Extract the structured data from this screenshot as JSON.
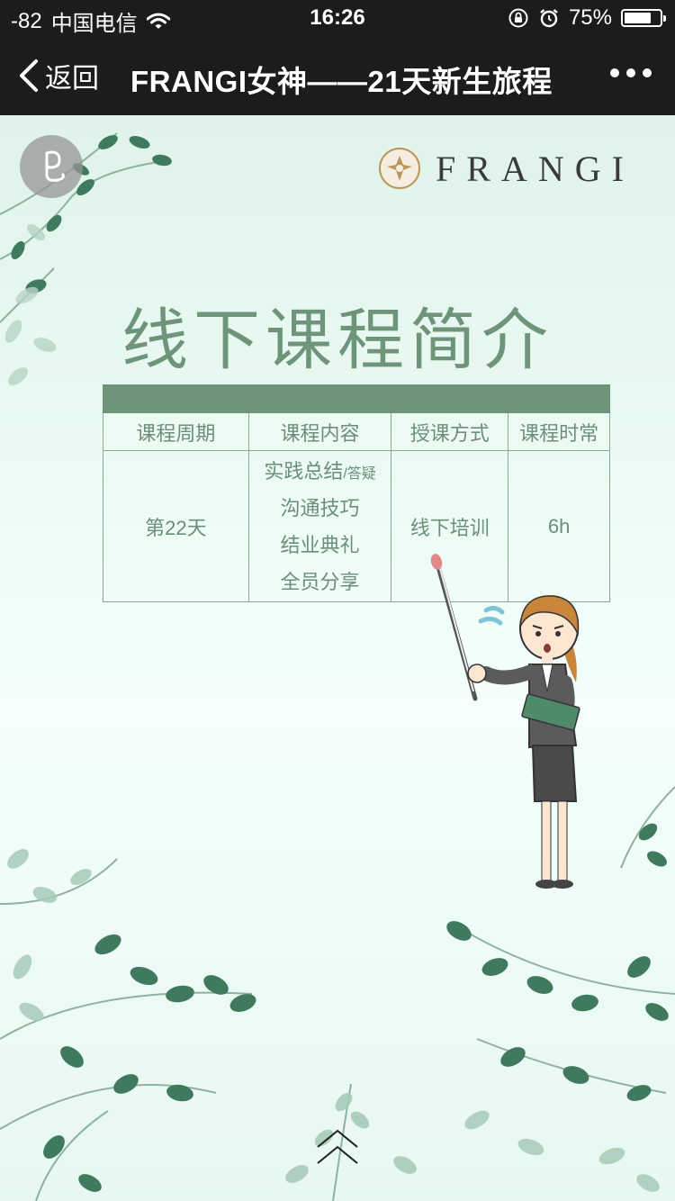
{
  "status_bar": {
    "signal": "-82",
    "carrier": "中国电信",
    "time": "16:26",
    "battery": "75%",
    "battery_level": 0.75
  },
  "nav": {
    "back_label": "返回",
    "title": "FRANGI女神——21天新生旅程"
  },
  "brand": {
    "name": "FRANGI"
  },
  "page": {
    "title": "线下课程简介"
  },
  "table": {
    "headers": [
      "课程周期",
      "课程内容",
      "授课方式",
      "课程时常"
    ],
    "row": {
      "period": "第22天",
      "content_line1": "实践总结",
      "content_line1_small": "/答疑",
      "content_line2": "沟通技巧",
      "content_line3": "结业典礼",
      "content_line4": "全员分享",
      "method": "线下培训",
      "duration": "6h"
    }
  },
  "colors": {
    "accent": "#6e9479",
    "table_text": "#6c8f78",
    "background_top": "#dff3eb",
    "background_bottom": "#e7f7f1",
    "leaf_dark": "#3f7a5e",
    "leaf_light": "#a8cbb8",
    "logo_gold": "#b8965a"
  },
  "icons": {
    "back": "chevron-left-icon",
    "more": "more-dots-icon",
    "music": "music-note-icon",
    "scroll": "double-chevron-up-icon",
    "wifi": "wifi-icon",
    "lock": "orientation-lock-icon",
    "alarm": "alarm-icon"
  }
}
